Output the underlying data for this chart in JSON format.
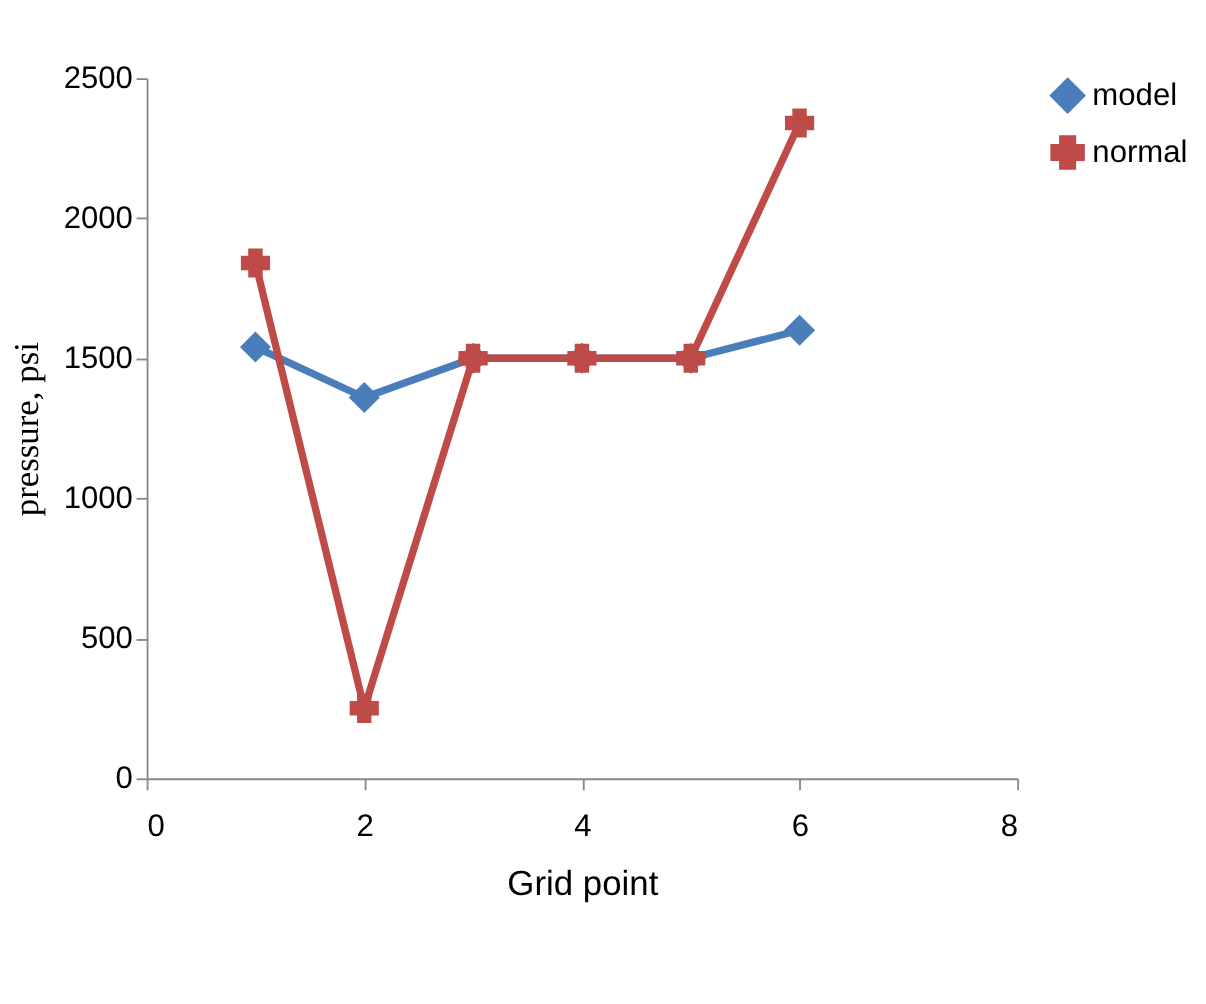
{
  "chart_data": {
    "type": "line",
    "xlabel": "Grid point",
    "ylabel": "pressure, psi",
    "x": [
      1,
      2,
      3,
      4,
      5,
      6
    ],
    "series": [
      {
        "name": "model",
        "color": "#4a7ebb",
        "marker": "diamond",
        "values": [
          1540,
          1360,
          1500,
          1500,
          1500,
          1600
        ]
      },
      {
        "name": "normal",
        "color": "#be4b48",
        "marker": "cross",
        "values": [
          1840,
          250,
          1500,
          1500,
          1500,
          2340
        ]
      }
    ],
    "xlim": [
      0,
      8
    ],
    "xticks": [
      0,
      2,
      4,
      6,
      8
    ],
    "ylim": [
      0,
      2500
    ],
    "yticks": [
      0,
      500,
      1000,
      1500,
      2000,
      2500
    ],
    "grid": false,
    "legend": "right"
  }
}
